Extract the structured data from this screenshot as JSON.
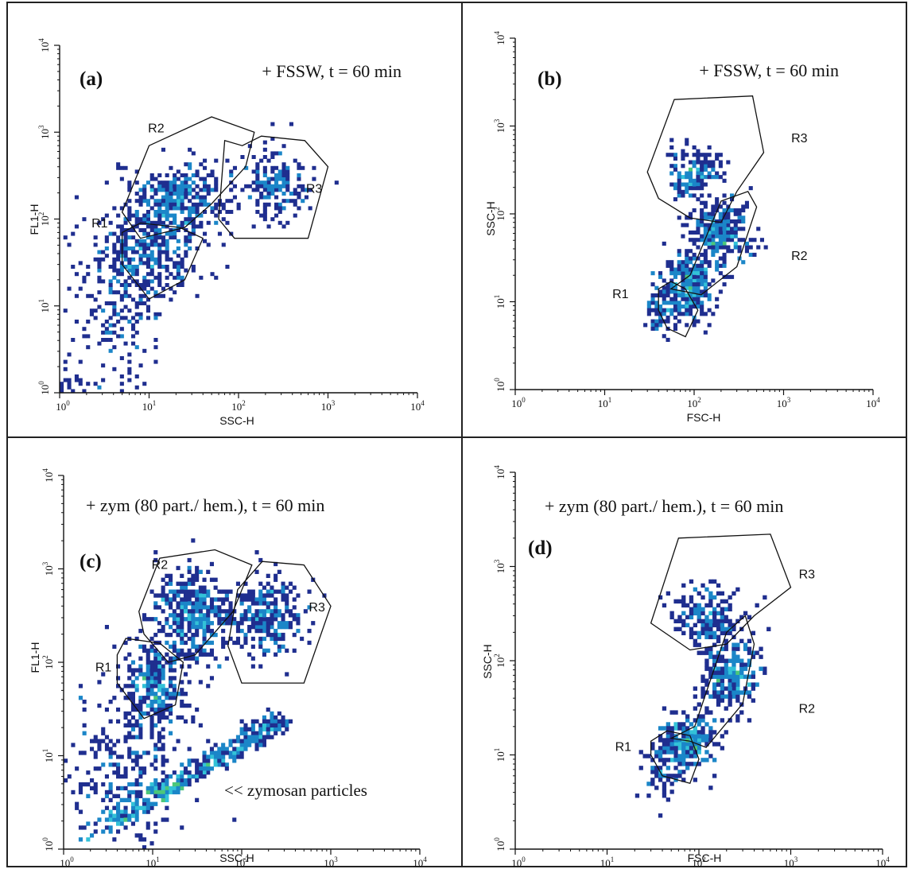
{
  "colors": {
    "density": [
      "#1f2e8f",
      "#2552b8",
      "#1b86c8",
      "#33c2d8",
      "#4cc77a",
      "#9fd64a",
      "#e8d33a",
      "#ee7a22",
      "#e8301e"
    ],
    "gate": "#111111",
    "frame": "#222222"
  },
  "chart_data": [
    {
      "type": "scatter",
      "panel_label": "(a)",
      "annotation": "+ FSSW, t = 60 min",
      "xlabel": "SSC-H",
      "ylabel": "FL1-H",
      "scale": "log",
      "xlim": [
        1,
        10000
      ],
      "ylim": [
        1,
        10000
      ],
      "x_ticks": [
        {
          "m": "10",
          "e": "0"
        },
        {
          "m": "10",
          "e": "1"
        },
        {
          "m": "10",
          "e": "2"
        },
        {
          "m": "10",
          "e": "3"
        },
        {
          "m": "10",
          "e": "4"
        }
      ],
      "y_ticks": [
        {
          "m": "10",
          "e": "0"
        },
        {
          "m": "10",
          "e": "1"
        },
        {
          "m": "10",
          "e": "2"
        },
        {
          "m": "10",
          "e": "3"
        },
        {
          "m": "10",
          "e": "4"
        }
      ],
      "gates": [
        {
          "name": "R1",
          "label_at": [
            2.8,
            80
          ],
          "polygon": [
            [
              5,
              70
            ],
            [
              8,
              90
            ],
            [
              22,
              80
            ],
            [
              40,
              60
            ],
            [
              25,
              20
            ],
            [
              10,
              12
            ],
            [
              5,
              30
            ]
          ]
        },
        {
          "name": "R2",
          "label_at": [
            12,
            1000
          ],
          "polygon": [
            [
              5,
              120
            ],
            [
              10,
              700
            ],
            [
              50,
              1500
            ],
            [
              150,
              1000
            ],
            [
              120,
              400
            ],
            [
              50,
              150
            ],
            [
              25,
              80
            ],
            [
              8,
              60
            ]
          ]
        },
        {
          "name": "R3",
          "label_at": [
            700,
            200
          ],
          "polygon": [
            [
              70,
              800
            ],
            [
              110,
              700
            ],
            [
              180,
              900
            ],
            [
              550,
              800
            ],
            [
              1000,
              400
            ],
            [
              600,
              60
            ],
            [
              90,
              60
            ],
            [
              60,
              100
            ]
          ]
        }
      ],
      "populations": [
        {
          "x": 9,
          "y": 40,
          "sx": 0.28,
          "sy": 0.28,
          "n": 320,
          "seed": 11
        },
        {
          "x": 20,
          "y": 160,
          "sx": 0.3,
          "sy": 0.22,
          "n": 380,
          "seed": 12
        },
        {
          "x": 250,
          "y": 250,
          "sx": 0.2,
          "sy": 0.2,
          "n": 180,
          "seed": 13
        },
        {
          "x": 4,
          "y": 7,
          "sx": 0.3,
          "sy": 0.45,
          "n": 170,
          "seed": 14
        },
        {
          "x": 1.1,
          "y": 1.2,
          "sx": 0.25,
          "sy": 0.1,
          "n": 40,
          "seed": 15
        }
      ]
    },
    {
      "type": "scatter",
      "panel_label": "(b)",
      "annotation": "+ FSSW, t = 60 min",
      "xlabel": "FSC-H",
      "ylabel": "SSC-H",
      "scale": "log",
      "xlim": [
        1,
        10000
      ],
      "ylim": [
        1,
        10000
      ],
      "x_ticks": [
        {
          "m": "10",
          "e": "0"
        },
        {
          "m": "10",
          "e": "1"
        },
        {
          "m": "10",
          "e": "2"
        },
        {
          "m": "10",
          "e": "3"
        },
        {
          "m": "10",
          "e": "4"
        }
      ],
      "y_ticks": [
        {
          "m": "10",
          "e": "0"
        },
        {
          "m": "10",
          "e": "1"
        },
        {
          "m": "10",
          "e": "2"
        },
        {
          "m": "10",
          "e": "3"
        },
        {
          "m": "10",
          "e": "4"
        }
      ],
      "gates": [
        {
          "name": "R1",
          "label_at": [
            15,
            11
          ],
          "polygon": [
            [
              40,
              14
            ],
            [
              55,
              17
            ],
            [
              80,
              14
            ],
            [
              110,
              8
            ],
            [
              80,
              4
            ],
            [
              50,
              5
            ],
            [
              40,
              8
            ]
          ]
        },
        {
          "name": "R2",
          "label_at": [
            1500,
            30
          ],
          "polygon": [
            [
              55,
              14
            ],
            [
              90,
              20
            ],
            [
              200,
              140
            ],
            [
              400,
              180
            ],
            [
              500,
              120
            ],
            [
              300,
              25
            ],
            [
              120,
              12
            ],
            [
              80,
              13
            ]
          ]
        },
        {
          "name": "R3",
          "label_at": [
            1500,
            650
          ],
          "polygon": [
            [
              60,
              2000
            ],
            [
              450,
              2200
            ],
            [
              600,
              500
            ],
            [
              300,
              180
            ],
            [
              200,
              80
            ],
            [
              90,
              90
            ],
            [
              40,
              150
            ],
            [
              30,
              300
            ]
          ]
        }
      ],
      "populations": [
        {
          "x": 90,
          "y": 15,
          "sx": 0.15,
          "sy": 0.18,
          "n": 300,
          "seed": 21
        },
        {
          "x": 200,
          "y": 60,
          "sx": 0.17,
          "sy": 0.2,
          "n": 280,
          "seed": 22
        },
        {
          "x": 100,
          "y": 300,
          "sx": 0.15,
          "sy": 0.15,
          "n": 160,
          "seed": 23
        },
        {
          "x": 45,
          "y": 8,
          "sx": 0.1,
          "sy": 0.15,
          "n": 80,
          "seed": 24
        }
      ]
    },
    {
      "type": "scatter",
      "panel_label": "(c)",
      "annotation": "+ zym (80 part./ hem.), t = 60 min",
      "extra_annotation": "<< zymosan particles",
      "xlabel": "SSC-H",
      "ylabel": "FL1-H",
      "scale": "log",
      "xlim": [
        1,
        10000
      ],
      "ylim": [
        1,
        10000
      ],
      "x_ticks": [
        {
          "m": "10",
          "e": "0"
        },
        {
          "m": "10",
          "e": "1"
        },
        {
          "m": "10",
          "e": "2"
        },
        {
          "m": "10",
          "e": "3"
        },
        {
          "m": "10",
          "e": "4"
        }
      ],
      "y_ticks": [
        {
          "m": "10",
          "e": "0"
        },
        {
          "m": "10",
          "e": "1"
        },
        {
          "m": "10",
          "e": "2"
        },
        {
          "m": "10",
          "e": "3"
        },
        {
          "m": "10",
          "e": "4"
        }
      ],
      "gates": [
        {
          "name": "R1",
          "label_at": [
            2.8,
            80
          ],
          "polygon": [
            [
              4,
              120
            ],
            [
              5,
              180
            ],
            [
              12,
              160
            ],
            [
              22,
              100
            ],
            [
              18,
              35
            ],
            [
              8,
              25
            ],
            [
              4,
              60
            ]
          ]
        },
        {
          "name": "R2",
          "label_at": [
            12,
            1000
          ],
          "polygon": [
            [
              7,
              350
            ],
            [
              12,
              1300
            ],
            [
              50,
              1600
            ],
            [
              130,
              1100
            ],
            [
              80,
              350
            ],
            [
              30,
              120
            ],
            [
              15,
              100
            ],
            [
              8,
              200
            ]
          ]
        },
        {
          "name": "R3",
          "label_at": [
            700,
            350
          ],
          "polygon": [
            [
              90,
              600
            ],
            [
              170,
              1200
            ],
            [
              500,
              1100
            ],
            [
              1000,
              400
            ],
            [
              500,
              60
            ],
            [
              100,
              60
            ],
            [
              70,
              150
            ]
          ]
        }
      ],
      "populations": [
        {
          "x": 10,
          "y": 55,
          "sx": 0.2,
          "sy": 0.22,
          "n": 300,
          "seed": 31
        },
        {
          "x": 28,
          "y": 300,
          "sx": 0.22,
          "sy": 0.25,
          "n": 420,
          "seed": 32
        },
        {
          "x": 200,
          "y": 300,
          "sx": 0.2,
          "sy": 0.22,
          "n": 260,
          "seed": 33
        },
        {
          "x": 5,
          "y": 6,
          "sx": 0.3,
          "sy": 0.4,
          "n": 260,
          "seed": 34
        }
      ],
      "diagonal": {
        "from": [
          1.5,
          1.0
        ],
        "to": [
          300,
          20
        ],
        "n": 420,
        "seed": 35
      }
    },
    {
      "type": "scatter",
      "panel_label": "(d)",
      "annotation": "+ zym (80 part./ hem.), t = 60 min",
      "xlabel": "FSC-H",
      "ylabel": "SSC-H",
      "scale": "log",
      "xlim": [
        1,
        10000
      ],
      "ylim": [
        1,
        10000
      ],
      "x_ticks": [
        {
          "m": "10",
          "e": "0"
        },
        {
          "m": "10",
          "e": "1"
        },
        {
          "m": "10",
          "e": "2"
        },
        {
          "m": "10",
          "e": "3"
        },
        {
          "m": "10",
          "e": "4"
        }
      ],
      "y_ticks": [
        {
          "m": "10",
          "e": "0"
        },
        {
          "m": "10",
          "e": "1"
        },
        {
          "m": "10",
          "e": "2"
        },
        {
          "m": "10",
          "e": "3"
        },
        {
          "m": "10",
          "e": "4"
        }
      ],
      "gates": [
        {
          "name": "R1",
          "label_at": [
            15,
            11
          ],
          "polygon": [
            [
              30,
              14
            ],
            [
              45,
              18
            ],
            [
              80,
              16
            ],
            [
              100,
              9
            ],
            [
              80,
              5
            ],
            [
              40,
              6
            ],
            [
              30,
              10
            ]
          ]
        },
        {
          "name": "R2",
          "label_at": [
            1500,
            28
          ],
          "polygon": [
            [
              50,
              15
            ],
            [
              90,
              20
            ],
            [
              200,
              200
            ],
            [
              320,
              300
            ],
            [
              400,
              150
            ],
            [
              300,
              35
            ],
            [
              120,
              12
            ],
            [
              80,
              14
            ]
          ]
        },
        {
          "name": "R3",
          "label_at": [
            1500,
            750
          ],
          "polygon": [
            [
              60,
              2000
            ],
            [
              600,
              2200
            ],
            [
              1000,
              600
            ],
            [
              400,
              300
            ],
            [
              200,
              150
            ],
            [
              80,
              130
            ],
            [
              30,
              250
            ]
          ]
        }
      ],
      "populations": [
        {
          "x": 80,
          "y": 14,
          "sx": 0.15,
          "sy": 0.16,
          "n": 260,
          "seed": 41
        },
        {
          "x": 220,
          "y": 70,
          "sx": 0.16,
          "sy": 0.2,
          "n": 260,
          "seed": 42
        },
        {
          "x": 120,
          "y": 300,
          "sx": 0.2,
          "sy": 0.16,
          "n": 180,
          "seed": 43
        },
        {
          "x": 40,
          "y": 7,
          "sx": 0.12,
          "sy": 0.15,
          "n": 70,
          "seed": 44
        }
      ]
    }
  ]
}
